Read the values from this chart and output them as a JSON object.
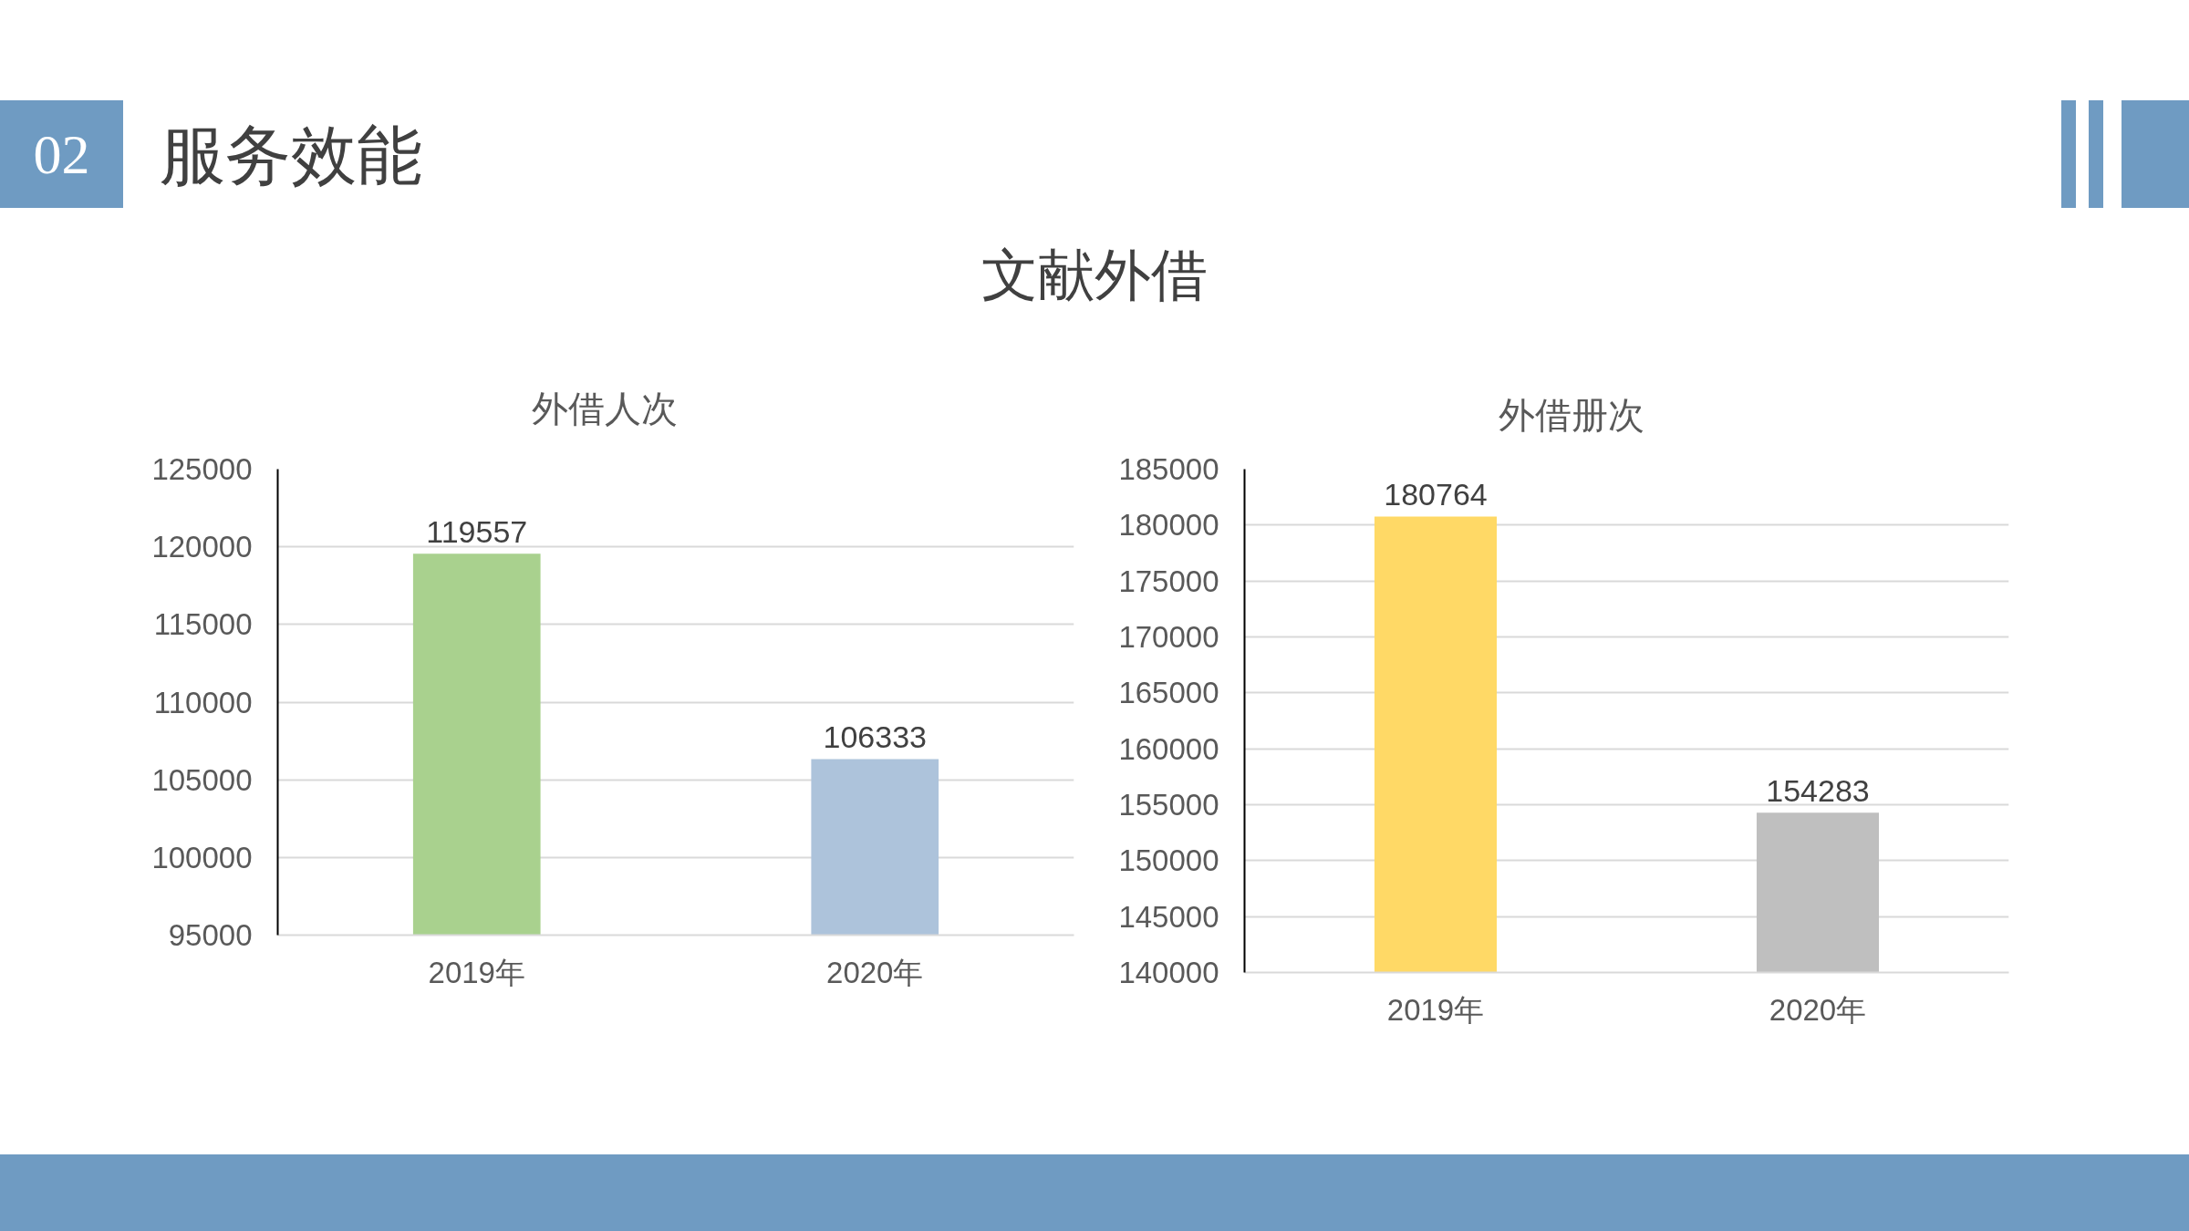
{
  "chart_data": [
    {
      "type": "other",
      "title": "服务效能",
      "subtitle": "文献外借",
      "annotations": [
        "02"
      ]
    },
    {
      "type": "bar",
      "title": "外借人次",
      "categories": [
        "2019年",
        "2020年"
      ],
      "values": [
        119557,
        106333
      ],
      "colors": [
        "#a9d18e",
        "#adc3db"
      ],
      "ylim": [
        95000,
        125000
      ],
      "yticks": [
        95000,
        100000,
        105000,
        110000,
        115000,
        120000,
        125000
      ],
      "grid": "y",
      "data_labels": true
    },
    {
      "type": "bar",
      "title": "外借册次",
      "categories": [
        "2019年",
        "2020年"
      ],
      "values": [
        180764,
        154283
      ],
      "colors": [
        "#ffd966",
        "#bfbfbf"
      ],
      "ylim": [
        140000,
        185000
      ],
      "yticks": [
        140000,
        145000,
        150000,
        155000,
        160000,
        165000,
        170000,
        175000,
        180000,
        185000
      ],
      "grid": "y",
      "data_labels": true
    }
  ]
}
